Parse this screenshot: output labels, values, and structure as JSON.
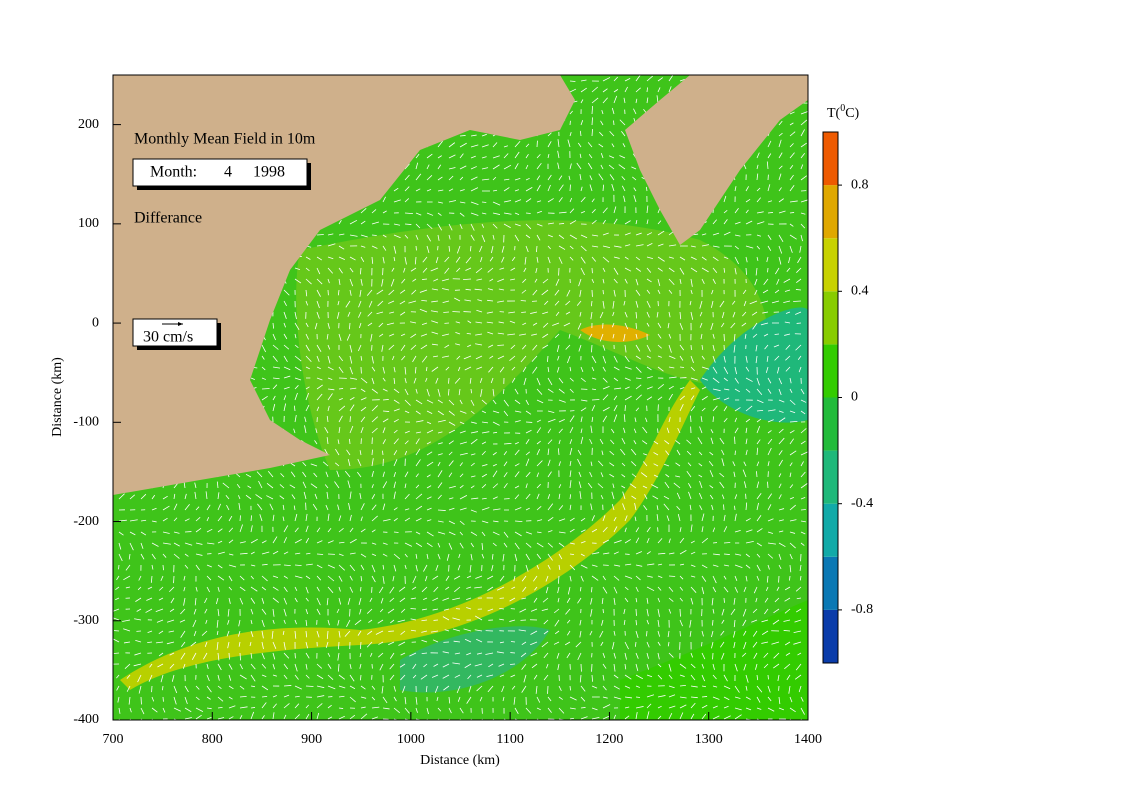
{
  "chart_data": {
    "type": "vector-field",
    "title": "Monthly Mean Field in 10m",
    "month_label": "Month:",
    "month": 4,
    "year": 1998,
    "subtitle": "Differance",
    "scale_label": "30 cm/s",
    "x_label": "Distance (km)",
    "y_label": "Distance (km)",
    "xlim": [
      700,
      1400
    ],
    "ylim": [
      -400,
      250
    ],
    "xticks": [
      700,
      800,
      900,
      1000,
      1100,
      1200,
      1300,
      1400
    ],
    "yticks": [
      -400,
      -300,
      -200,
      -100,
      0,
      100,
      200
    ],
    "colorbar": {
      "label": "T(",
      "label_sup": "0",
      "label_unit": "C)",
      "levels": [
        -1,
        -0.8,
        -0.6,
        -0.4,
        -0.2,
        0,
        0.2,
        0.4,
        0.6,
        0.8,
        1
      ],
      "colors": [
        "#0a3caa",
        "#0a78b4",
        "#11aaa8",
        "#1fb87a",
        "#22bb3a",
        "#33cc00",
        "#88cc00",
        "#c8d200",
        "#e0a800",
        "#ee5a00"
      ],
      "ticks": [
        -0.8,
        -0.4,
        0,
        0.4,
        0.8
      ]
    }
  }
}
